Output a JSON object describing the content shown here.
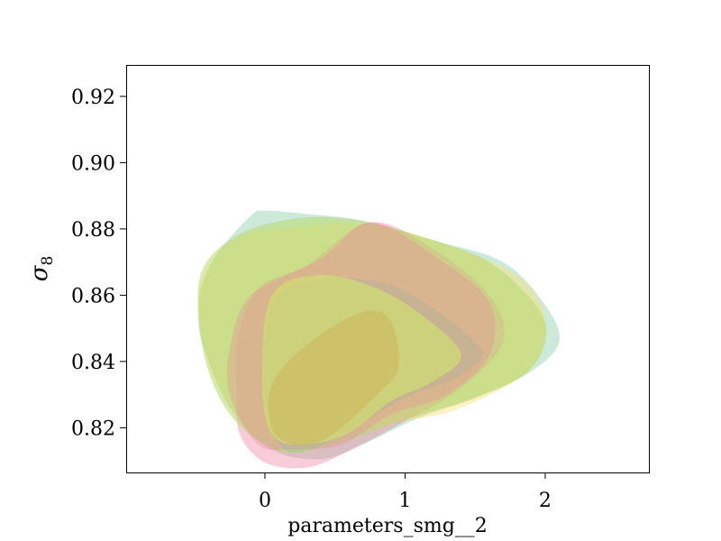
{
  "chart_data": {
    "type": "contour",
    "title": "",
    "xlabel": "parameters_smg__2",
    "ylabel": "σ",
    "ylabel_subscript": "8",
    "xlim": [
      -0.99,
      2.74
    ],
    "ylim": [
      0.8065,
      0.9295
    ],
    "x_ticks": [
      0,
      1,
      2
    ],
    "x_tick_labels": [
      "0",
      "1",
      "2"
    ],
    "y_ticks": [
      0.82,
      0.84,
      0.86,
      0.88,
      0.9,
      0.92
    ],
    "y_tick_labels": [
      "0.82",
      "0.84",
      "0.86",
      "0.88",
      "0.90",
      "0.92"
    ],
    "grid": false,
    "legend": "none",
    "regions": [
      {
        "level": "outer",
        "color": "#7fc9a0",
        "opacity": 0.4,
        "points": [
          [
            -0.45,
            0.862
          ],
          [
            -0.35,
            0.872
          ],
          [
            -0.1,
            0.884
          ],
          [
            0.0,
            0.8855
          ],
          [
            0.3,
            0.8845
          ],
          [
            0.7,
            0.8825
          ],
          [
            1.2,
            0.8765
          ],
          [
            1.7,
            0.87
          ],
          [
            2.0,
            0.857
          ],
          [
            2.1,
            0.846
          ],
          [
            1.9,
            0.837
          ],
          [
            1.5,
            0.829
          ],
          [
            1.1,
            0.823
          ],
          [
            0.7,
            0.815
          ],
          [
            0.4,
            0.8105
          ],
          [
            0.05,
            0.8135
          ],
          [
            -0.25,
            0.826
          ],
          [
            -0.45,
            0.846
          ],
          [
            -0.47,
            0.856
          ]
        ]
      },
      {
        "level": "outer",
        "color": "#fbe37a",
        "opacity": 0.45,
        "points": [
          [
            -0.45,
            0.864
          ],
          [
            -0.2,
            0.877
          ],
          [
            0.3,
            0.881
          ],
          [
            0.8,
            0.881
          ],
          [
            1.3,
            0.875
          ],
          [
            1.8,
            0.866
          ],
          [
            2.0,
            0.853
          ],
          [
            1.9,
            0.838
          ],
          [
            1.4,
            0.826
          ],
          [
            1.0,
            0.822
          ],
          [
            0.5,
            0.818
          ],
          [
            0.0,
            0.8165
          ],
          [
            -0.3,
            0.83
          ],
          [
            -0.45,
            0.848
          ]
        ]
      },
      {
        "level": "outer",
        "color": "#f07fa0",
        "opacity": 0.4,
        "points": [
          [
            -0.2,
            0.846
          ],
          [
            -0.05,
            0.862
          ],
          [
            0.3,
            0.869
          ],
          [
            0.75,
            0.882
          ],
          [
            1.2,
            0.874
          ],
          [
            1.6,
            0.86
          ],
          [
            1.7,
            0.846
          ],
          [
            1.4,
            0.832
          ],
          [
            1.0,
            0.822
          ],
          [
            0.6,
            0.813
          ],
          [
            0.3,
            0.808
          ],
          [
            0.0,
            0.8095
          ],
          [
            -0.18,
            0.818
          ],
          [
            -0.2,
            0.83
          ]
        ]
      },
      {
        "level": "outer",
        "color": "#b9d96e",
        "opacity": 0.55,
        "points": [
          [
            -0.46,
            0.866
          ],
          [
            -0.2,
            0.878
          ],
          [
            0.2,
            0.883
          ],
          [
            0.6,
            0.883
          ],
          [
            1.1,
            0.878
          ],
          [
            1.6,
            0.87
          ],
          [
            1.95,
            0.856
          ],
          [
            2.0,
            0.846
          ],
          [
            1.85,
            0.836
          ],
          [
            1.5,
            0.829
          ],
          [
            1.2,
            0.825
          ],
          [
            0.9,
            0.821
          ],
          [
            0.5,
            0.815
          ],
          [
            0.1,
            0.813
          ],
          [
            -0.25,
            0.824
          ],
          [
            -0.44,
            0.843
          ]
        ]
      },
      {
        "level": "inner",
        "color": "#7fc9a0",
        "opacity": 0.3,
        "points": [
          [
            0.05,
            0.857
          ],
          [
            0.4,
            0.865
          ],
          [
            0.9,
            0.863
          ],
          [
            1.3,
            0.853
          ],
          [
            1.55,
            0.843
          ],
          [
            1.4,
            0.836
          ],
          [
            1.0,
            0.829
          ],
          [
            0.6,
            0.819
          ],
          [
            0.3,
            0.813
          ],
          [
            0.1,
            0.815
          ],
          [
            0.0,
            0.83
          ]
        ]
      },
      {
        "level": "inner",
        "color": "#f07fa0",
        "opacity": 0.3,
        "points": [
          [
            -0.25,
            0.844
          ],
          [
            -0.1,
            0.86
          ],
          [
            0.4,
            0.871
          ],
          [
            0.75,
            0.882
          ],
          [
            1.2,
            0.872
          ],
          [
            1.6,
            0.858
          ],
          [
            1.6,
            0.842
          ],
          [
            1.3,
            0.83
          ],
          [
            0.9,
            0.824
          ],
          [
            0.55,
            0.815
          ],
          [
            0.2,
            0.8135
          ],
          [
            -0.05,
            0.815
          ],
          [
            -0.25,
            0.83
          ]
        ]
      },
      {
        "level": "inner",
        "color": "#fbe37a",
        "opacity": 0.5,
        "points": [
          [
            0.05,
            0.86
          ],
          [
            0.4,
            0.866
          ],
          [
            0.8,
            0.862
          ],
          [
            1.15,
            0.853
          ],
          [
            1.4,
            0.842
          ],
          [
            1.2,
            0.834
          ],
          [
            0.9,
            0.828
          ],
          [
            0.6,
            0.8185
          ],
          [
            0.3,
            0.815
          ],
          [
            0.05,
            0.818
          ],
          [
            -0.02,
            0.835
          ]
        ]
      },
      {
        "level": "inner",
        "color": "#b9d96e",
        "opacity": 0.45,
        "points": [
          [
            0.05,
            0.86
          ],
          [
            0.4,
            0.866
          ],
          [
            0.8,
            0.862
          ],
          [
            1.15,
            0.853
          ],
          [
            1.4,
            0.842
          ],
          [
            1.2,
            0.834
          ],
          [
            0.9,
            0.828
          ],
          [
            0.6,
            0.8185
          ],
          [
            0.3,
            0.815
          ],
          [
            0.05,
            0.818
          ],
          [
            -0.02,
            0.835
          ]
        ]
      },
      {
        "level": "core",
        "color": "#c9b055",
        "opacity": 0.45,
        "points": [
          [
            0.05,
            0.833
          ],
          [
            0.3,
            0.845
          ],
          [
            0.7,
            0.855
          ],
          [
            0.9,
            0.852
          ],
          [
            0.95,
            0.838
          ],
          [
            0.8,
            0.83
          ],
          [
            0.6,
            0.822
          ],
          [
            0.4,
            0.816
          ],
          [
            0.2,
            0.815
          ],
          [
            0.05,
            0.82
          ]
        ]
      }
    ]
  }
}
